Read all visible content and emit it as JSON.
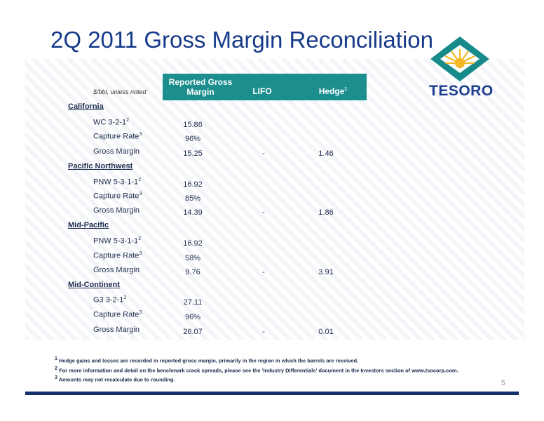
{
  "title": "2Q 2011 Gross Margin Reconciliation",
  "units_note": "$/bbl, unless noted",
  "columns": {
    "reported_line1": "Reported Gross",
    "reported_line2": "Margin",
    "lifo": "LIFO",
    "hedge": "Hedge",
    "hedge_sup": "1"
  },
  "logo_text": "TESORO",
  "regions": [
    {
      "name": "California",
      "bench_label": "WC 3-2-1",
      "bench_sup": "2",
      "bench_value": "15.86",
      "capture_label": "Capture Rate",
      "capture_sup": "3",
      "capture_value": "96%",
      "gm_label": "Gross Margin",
      "gm_value": "15.25",
      "lifo": "-",
      "hedge": "1.46"
    },
    {
      "name": "Pacific Northwest",
      "bench_label": "PNW 5-3-1-1",
      "bench_sup": "2",
      "bench_value": "16.92",
      "capture_label": "Capture Rate",
      "capture_sup": "3",
      "capture_value": "85%",
      "gm_label": "Gross Margin",
      "gm_value": "14.39",
      "lifo": "-",
      "hedge": "1.86"
    },
    {
      "name": "Mid-Pacific",
      "bench_label": "PNW 5-3-1-1",
      "bench_sup": "2",
      "bench_value": "16.92",
      "capture_label": "Capture Rate",
      "capture_sup": "3",
      "capture_value": "58%",
      "gm_label": "Gross Margin",
      "gm_value": "9.76",
      "lifo": "-",
      "hedge": "3.91"
    },
    {
      "name": "Mid-Continent",
      "bench_label": "G3 3-2-1",
      "bench_sup": "2",
      "bench_value": "27.11",
      "capture_label": "Capture Rate",
      "capture_sup": "3",
      "capture_value": "96%",
      "gm_label": "Gross Margin",
      "gm_value": "26.07",
      "lifo": "-",
      "hedge": "0.01"
    }
  ],
  "footnotes": [
    {
      "sup": "1",
      "text": " Hedge gains and losses are recorded in reported gross margin, primarily in the region in which the barrels are received."
    },
    {
      "sup": "2",
      "text": " For more information and detail on the benchmark crack spreads, please see the 'Industry Differentials' document in the Investors section of www.tsocorp.com."
    },
    {
      "sup": "3",
      "text": " Amounts may not recalculate due to rounding."
    }
  ],
  "page_number": "5",
  "colors": {
    "title": "#163a8a",
    "header_bar": "#1c8e8e",
    "footer_line": "#152e6e",
    "logo_teal": "#178a8a",
    "logo_gold": "#f2b824"
  }
}
